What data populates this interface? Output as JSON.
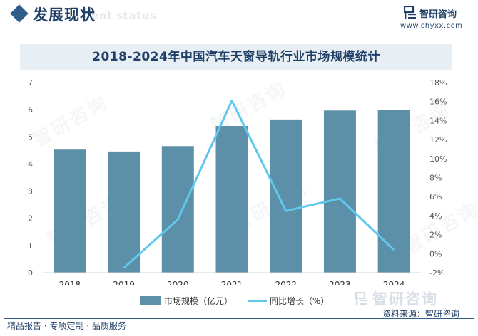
{
  "header": {
    "title": "发展现状",
    "bg_text": "ent status",
    "brand": "智研咨询",
    "url": "www.chyxx.com",
    "logo_icon": "chyxx-logo-icon",
    "accent_color": "#1f3f66"
  },
  "watermark": {
    "text": "智研咨询"
  },
  "chart_data": {
    "type": "bar",
    "title": "2018-2024年中国汽车天窗导轨行业市场规模统计",
    "categories": [
      "2018",
      "2019",
      "2020",
      "2021",
      "2022",
      "2023",
      "2024"
    ],
    "series": [
      {
        "name": "市场规模（亿元）",
        "type": "bar",
        "axis": "left",
        "color": "#5c8fa8",
        "values": [
          4.53,
          4.46,
          4.66,
          5.4,
          5.64,
          5.97,
          6.0
        ]
      },
      {
        "name": "同比增长（%）",
        "type": "line",
        "axis": "right",
        "color": "#5fc8ec",
        "values": [
          null,
          -1.5,
          3.6,
          16.1,
          4.5,
          5.8,
          0.4
        ]
      }
    ],
    "y_left": {
      "range": [
        0,
        7
      ],
      "ticks": [
        "0",
        "1",
        "2",
        "3",
        "4",
        "5",
        "6",
        "7"
      ]
    },
    "y_right": {
      "range": [
        -2,
        18
      ],
      "ticks": [
        "-2%",
        "0%",
        "2%",
        "4%",
        "6%",
        "8%",
        "10%",
        "12%",
        "14%",
        "16%",
        "18%"
      ]
    },
    "grid": false,
    "legend_position": "bottom"
  },
  "footer": {
    "brand": "智研咨询",
    "source": "资料来源：智研咨询",
    "services": "精品报告 · 专项定制 · 品质服务"
  }
}
